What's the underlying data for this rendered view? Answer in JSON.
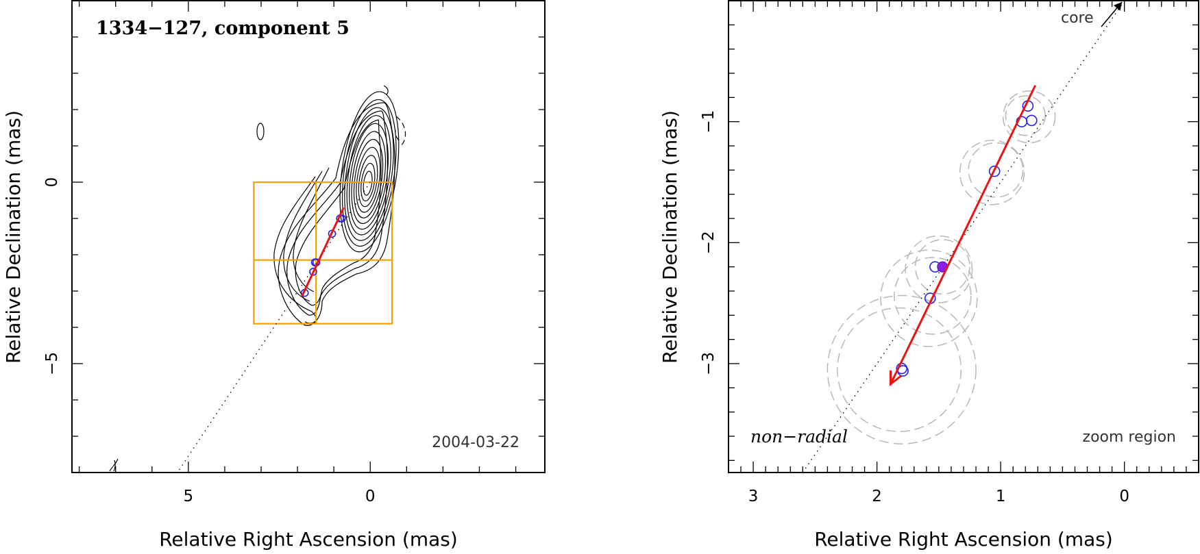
{
  "chart_data": [
    {
      "type": "scatter",
      "panel": "map",
      "title": "1334−127, component 5",
      "date_label": "2004-03-22",
      "xlabel": "Relative Right Ascension (mas)",
      "ylabel": "Relative Declination (mas)",
      "xlim": [
        8.2,
        -4.8
      ],
      "ylim": [
        -8.0,
        5.0
      ],
      "x_ticks": [
        5,
        0
      ],
      "y_ticks": [
        0,
        -5
      ],
      "x_tick_labels": [
        "5",
        "0"
      ],
      "y_tick_labels": [
        "0",
        "−5"
      ],
      "components": [
        {
          "x": 0.78,
          "y": -1.0
        },
        {
          "x": 0.83,
          "y": -1.0
        },
        {
          "x": 1.05,
          "y": -1.42
        },
        {
          "x": 1.48,
          "y": -2.21
        },
        {
          "x": 1.52,
          "y": -2.21
        },
        {
          "x": 1.57,
          "y": -2.47
        },
        {
          "x": 1.8,
          "y": -3.05
        }
      ],
      "velocity_vector": {
        "x0": 0.73,
        "y0": -0.7,
        "x1": 1.88,
        "y1": -3.15
      },
      "radial_line": {
        "x0": 0.0,
        "y0": 0.0,
        "x1": 5.3,
        "y1": -8.0
      },
      "zoom_box": {
        "x": [
          -0.6,
          3.2
        ],
        "y": [
          -3.9,
          0.0
        ]
      }
    },
    {
      "type": "scatter",
      "panel": "zoom",
      "xlabel": "Relative Right Ascension (mas)",
      "ylabel": "Relative Declination (mas)",
      "xlim": [
        3.2,
        -0.6
      ],
      "ylim": [
        -3.9,
        0.0
      ],
      "x_ticks": [
        3,
        2,
        1,
        0
      ],
      "y_ticks": [
        -1,
        -2,
        -3
      ],
      "x_tick_labels": [
        "3",
        "2",
        "1",
        "0"
      ],
      "y_tick_labels": [
        "−1",
        "−2",
        "−3"
      ],
      "core_label": "core",
      "mode_label": "non−radial",
      "region_label": "zoom region",
      "components": [
        {
          "x": 0.78,
          "y": -0.87,
          "filled": false
        },
        {
          "x": 0.83,
          "y": -1.0,
          "filled": false
        },
        {
          "x": 0.75,
          "y": -0.99,
          "filled": false
        },
        {
          "x": 1.05,
          "y": -1.41,
          "filled": false
        },
        {
          "x": 1.53,
          "y": -2.2,
          "filled": false
        },
        {
          "x": 1.47,
          "y": -2.2,
          "filled": true
        },
        {
          "x": 1.57,
          "y": -2.46,
          "filled": false
        },
        {
          "x": 1.8,
          "y": -3.04,
          "filled": false
        },
        {
          "x": 1.79,
          "y": -3.06,
          "filled": false
        }
      ],
      "error_circles": [
        {
          "x": 0.77,
          "y": -0.96,
          "r": 0.21
        },
        {
          "x": 0.8,
          "y": -0.95,
          "r": 0.16
        },
        {
          "x": 1.07,
          "y": -1.42,
          "r": 0.26
        },
        {
          "x": 1.04,
          "y": -1.4,
          "r": 0.22
        },
        {
          "x": 1.5,
          "y": -2.22,
          "r": 0.27
        },
        {
          "x": 1.47,
          "y": -2.2,
          "r": 0.22
        },
        {
          "x": 1.58,
          "y": -2.46,
          "r": 0.39
        },
        {
          "x": 1.55,
          "y": -2.44,
          "r": 0.31
        },
        {
          "x": 1.8,
          "y": -3.05,
          "r": 0.6
        },
        {
          "x": 1.82,
          "y": -3.05,
          "r": 0.5
        }
      ],
      "velocity_vector": {
        "x0": 0.72,
        "y0": -0.7,
        "x1": 1.89,
        "y1": -3.17
      },
      "radial_line": {
        "x0": 0.0,
        "y0": 0.0,
        "x1": 2.6,
        "y1": -3.9
      }
    }
  ]
}
